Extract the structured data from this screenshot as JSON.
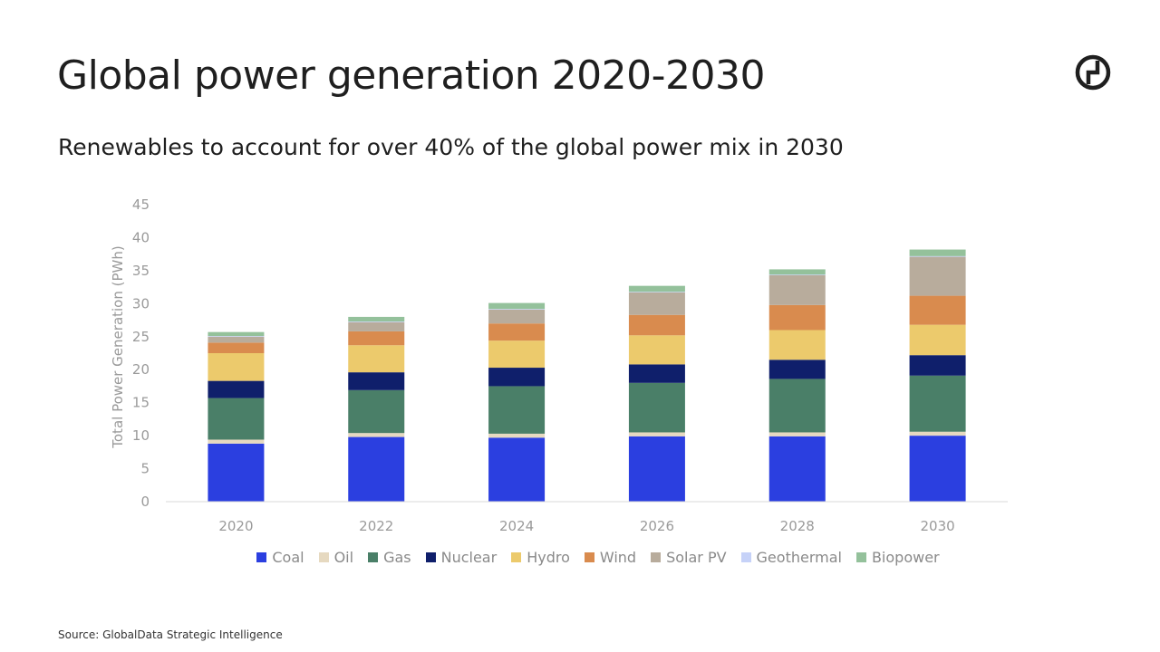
{
  "header": {
    "title": "Global power generation 2020-2030",
    "subtitle": "Renewables to account for over 40% of the global power mix in 2030"
  },
  "logo": {
    "icon": "globaldata-logo-icon"
  },
  "source": "Source: GlobalData Strategic Intelligence",
  "chart_data": {
    "type": "bar",
    "stacked": true,
    "title": "",
    "xlabel": "",
    "ylabel": "Total Power Generation (PWh)",
    "ylim": [
      0,
      45
    ],
    "yticks": [
      0,
      5,
      10,
      15,
      20,
      25,
      30,
      35,
      40,
      45
    ],
    "grid": false,
    "legend_position": "bottom",
    "categories": [
      "2020",
      "2022",
      "2024",
      "2026",
      "2028",
      "2030"
    ],
    "series": [
      {
        "name": "Coal",
        "color": "#2b3fe0",
        "values": [
          8.8,
          9.8,
          9.7,
          9.9,
          9.9,
          10.0
        ]
      },
      {
        "name": "Oil",
        "color": "#e6d9c0",
        "values": [
          0.6,
          0.6,
          0.6,
          0.6,
          0.6,
          0.6
        ]
      },
      {
        "name": "Gas",
        "color": "#4a7f68",
        "values": [
          6.3,
          6.5,
          7.2,
          7.5,
          8.1,
          8.5
        ]
      },
      {
        "name": "Nuclear",
        "color": "#0f1f6b",
        "values": [
          2.6,
          2.7,
          2.8,
          2.8,
          2.9,
          3.1
        ]
      },
      {
        "name": "Hydro",
        "color": "#ecca6c",
        "values": [
          4.2,
          4.1,
          4.1,
          4.4,
          4.5,
          4.6
        ]
      },
      {
        "name": "Wind",
        "color": "#d98b4e",
        "values": [
          1.6,
          2.1,
          2.6,
          3.1,
          3.8,
          4.4
        ]
      },
      {
        "name": "Solar PV",
        "color": "#b8ac9c",
        "values": [
          0.9,
          1.4,
          2.1,
          3.4,
          4.5,
          5.9
        ]
      },
      {
        "name": "Geothermal",
        "color": "#c6d2f8",
        "values": [
          0.1,
          0.1,
          0.1,
          0.1,
          0.1,
          0.1
        ]
      },
      {
        "name": "Biopower",
        "color": "#94c19b",
        "values": [
          0.6,
          0.7,
          0.9,
          0.9,
          0.8,
          1.0
        ]
      }
    ]
  }
}
